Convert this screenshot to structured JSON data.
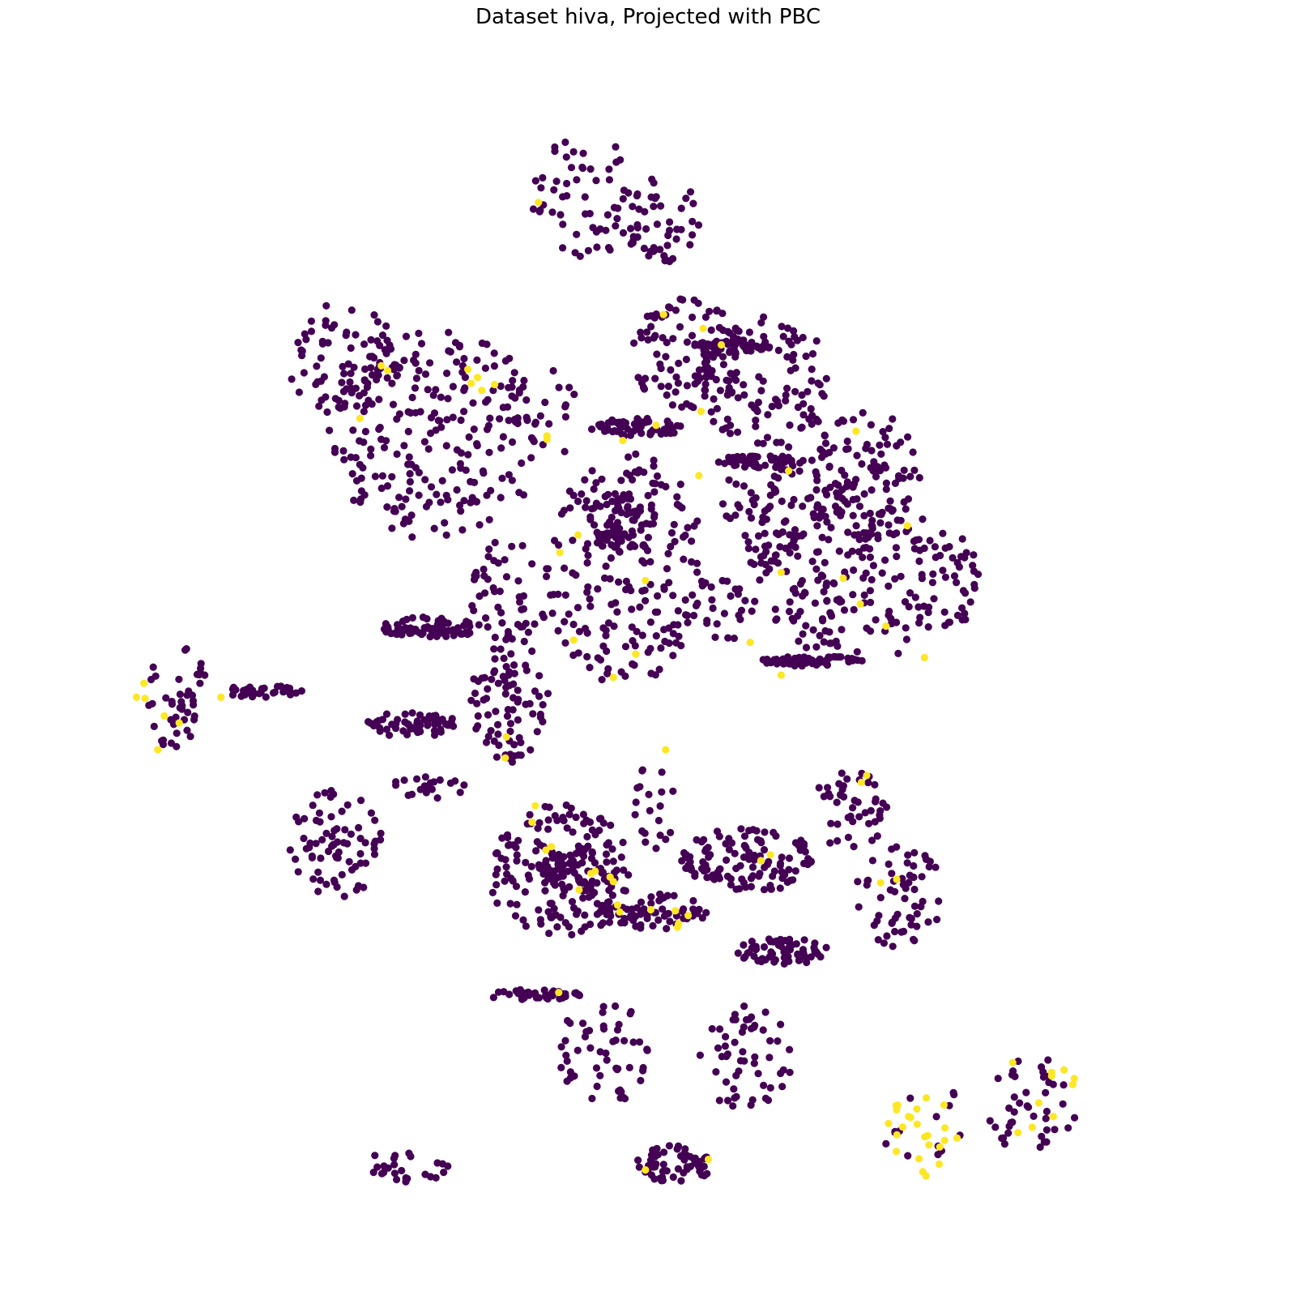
{
  "chart_data": {
    "type": "scatter",
    "title": "Dataset hiva, Projected with PBC",
    "xlabel": "",
    "ylabel": "",
    "axes_visible": false,
    "grid": false,
    "legend": "none",
    "xlim": [
      0,
      100
    ],
    "ylim": [
      0,
      100
    ],
    "point_radius": 4.6,
    "colors": {
      "class_0": "#440154",
      "class_1": "#fde725"
    },
    "clusters": [
      {
        "id": "top-a",
        "class": 0,
        "cx": 48.5,
        "cy": 89.5,
        "rx": 4.8,
        "ry": 5.6,
        "n": 50,
        "seed": 1
      },
      {
        "id": "top-b",
        "class": 0,
        "cx": 55.3,
        "cy": 87.4,
        "rx": 4.2,
        "ry": 3.9,
        "n": 55,
        "seed": 2
      },
      {
        "id": "ul-a",
        "class": 0,
        "cx": 26.2,
        "cy": 75.5,
        "rx": 5.5,
        "ry": 4.8,
        "n": 70,
        "seed": 3
      },
      {
        "id": "ul-b",
        "class": 0,
        "cx": 34.7,
        "cy": 69.0,
        "rx": 10.2,
        "ry": 9.0,
        "n": 240,
        "seed": 4
      },
      {
        "id": "ul-c",
        "class": 0,
        "cx": 46.5,
        "cy": 71.5,
        "rx": 1.6,
        "ry": 4.0,
        "n": 10,
        "seed": 5
      },
      {
        "id": "center-top",
        "class": 0,
        "cx": 58.3,
        "cy": 76.0,
        "rx": 5.5,
        "ry": 4.8,
        "n": 95,
        "seed": 6
      },
      {
        "id": "band-1",
        "class": 0,
        "cx": 53.5,
        "cy": 69.6,
        "rx": 4.4,
        "ry": 0.8,
        "n": 60,
        "seed": 7
      },
      {
        "id": "ur-top",
        "class": 0,
        "cx": 65.5,
        "cy": 73.5,
        "rx": 6.4,
        "ry": 5.6,
        "n": 110,
        "seed": 8
      },
      {
        "id": "band-2",
        "class": 0,
        "cx": 62.5,
        "cy": 76.6,
        "rx": 3.8,
        "ry": 0.55,
        "n": 45,
        "seed": 9
      },
      {
        "id": "band-3",
        "class": 0,
        "cx": 65.2,
        "cy": 66.7,
        "rx": 4.1,
        "ry": 0.55,
        "n": 55,
        "seed": 10
      },
      {
        "id": "ur-b",
        "class": 0,
        "cx": 67.3,
        "cy": 63.0,
        "rx": 6.0,
        "ry": 5.0,
        "n": 90,
        "seed": 11
      },
      {
        "id": "ur-c",
        "class": 0,
        "cx": 75.0,
        "cy": 65.5,
        "rx": 5.2,
        "ry": 5.5,
        "n": 95,
        "seed": 12
      },
      {
        "id": "right-mid",
        "class": 0,
        "cx": 74.7,
        "cy": 56.5,
        "rx": 11.2,
        "ry": 6.6,
        "n": 210,
        "seed": 13
      },
      {
        "id": "right-mid-2",
        "class": 0,
        "cx": 61.5,
        "cy": 54.3,
        "rx": 3.6,
        "ry": 2.9,
        "n": 28,
        "seed": 14
      },
      {
        "id": "band-4",
        "class": 0,
        "cx": 69.8,
        "cy": 49.6,
        "rx": 4.8,
        "ry": 0.45,
        "n": 65,
        "seed": 15
      },
      {
        "id": "center",
        "class": 0,
        "cx": 52.5,
        "cy": 57.5,
        "rx": 7.6,
        "ry": 10.0,
        "n": 190,
        "seed": 16
      },
      {
        "id": "center-dense",
        "class": 0,
        "cx": 52.2,
        "cy": 61.5,
        "rx": 3.4,
        "ry": 2.6,
        "n": 70,
        "seed": 17
      },
      {
        "id": "mid-left",
        "class": 0,
        "cx": 41.6,
        "cy": 55.7,
        "rx": 4.2,
        "ry": 4.3,
        "n": 48,
        "seed": 18
      },
      {
        "id": "band-5",
        "class": 0,
        "cx": 34.2,
        "cy": 52.5,
        "rx": 4.7,
        "ry": 0.9,
        "n": 70,
        "seed": 19
      },
      {
        "id": "mid-left-2",
        "class": 0,
        "cx": 41.6,
        "cy": 46.5,
        "rx": 3.6,
        "ry": 5.6,
        "n": 85,
        "seed": 20
      },
      {
        "id": "band-6",
        "class": 0,
        "cx": 32.5,
        "cy": 44.2,
        "rx": 4.4,
        "ry": 1.1,
        "n": 55,
        "seed": 21
      },
      {
        "id": "far-left",
        "class": 0,
        "cx": 10.5,
        "cy": 46.3,
        "rx": 3.1,
        "ry": 4.6,
        "n": 45,
        "seed": 22
      },
      {
        "id": "band-7",
        "class": 0,
        "cx": 18.3,
        "cy": 47.0,
        "rx": 4.2,
        "ry": 0.5,
        "n": 35,
        "seed": 23
      },
      {
        "id": "band-8",
        "class": 0,
        "cx": 34.3,
        "cy": 38.8,
        "rx": 4.0,
        "ry": 1.0,
        "n": 20,
        "seed": 24
      },
      {
        "id": "left-low",
        "class": 0,
        "cx": 25.3,
        "cy": 34.0,
        "rx": 4.4,
        "ry": 4.8,
        "n": 75,
        "seed": 25
      },
      {
        "id": "low-center",
        "class": 0,
        "cx": 46.3,
        "cy": 31.5,
        "rx": 6.6,
        "ry": 5.8,
        "n": 160,
        "seed": 26
      },
      {
        "id": "low-center-dense",
        "class": 0,
        "cx": 47.7,
        "cy": 31.8,
        "rx": 3.4,
        "ry": 2.0,
        "n": 65,
        "seed": 27
      },
      {
        "id": "band-9",
        "class": 0,
        "cx": 55.0,
        "cy": 28.1,
        "rx": 5.0,
        "ry": 1.6,
        "n": 65,
        "seed": 28
      },
      {
        "id": "low-center-2",
        "class": 0,
        "cx": 55.3,
        "cy": 37.0,
        "rx": 2.6,
        "ry": 3.8,
        "n": 20,
        "seed": 29
      },
      {
        "id": "low-right-band",
        "class": 0,
        "cx": 63.8,
        "cy": 32.5,
        "rx": 6.6,
        "ry": 2.8,
        "n": 120,
        "seed": 30
      },
      {
        "id": "low-right-b",
        "class": 0,
        "cx": 73.3,
        "cy": 36.8,
        "rx": 3.6,
        "ry": 3.5,
        "n": 45,
        "seed": 31
      },
      {
        "id": "low-right-c",
        "class": 0,
        "cx": 78.0,
        "cy": 29.5,
        "rx": 4.2,
        "ry": 4.4,
        "n": 60,
        "seed": 32
      },
      {
        "id": "band-10",
        "class": 0,
        "cx": 67.2,
        "cy": 24.7,
        "rx": 4.4,
        "ry": 1.2,
        "n": 65,
        "seed": 33
      },
      {
        "id": "band-11",
        "class": 0,
        "cx": 43.5,
        "cy": 21.0,
        "rx": 4.9,
        "ry": 0.45,
        "n": 45,
        "seed": 34
      },
      {
        "id": "bottom-a",
        "class": 0,
        "cx": 50.2,
        "cy": 16.0,
        "rx": 4.6,
        "ry": 4.5,
        "n": 55,
        "seed": 35
      },
      {
        "id": "bottom-b",
        "class": 0,
        "cx": 63.7,
        "cy": 15.7,
        "rx": 4.3,
        "ry": 4.6,
        "n": 55,
        "seed": 36
      },
      {
        "id": "bottom-left",
        "class": 0,
        "cx": 31.5,
        "cy": 6.2,
        "rx": 4.4,
        "ry": 1.3,
        "n": 25,
        "seed": 37
      },
      {
        "id": "bottom-mid",
        "class": 0,
        "cx": 57.1,
        "cy": 6.5,
        "rx": 3.6,
        "ry": 1.6,
        "n": 55,
        "seed": 38
      },
      {
        "id": "bottom-right",
        "class": 0,
        "cx": 90.5,
        "cy": 11.5,
        "rx": 4.3,
        "ry": 4.3,
        "n": 42,
        "seed": 39
      },
      {
        "id": "bottom-right-2",
        "class": 0,
        "cx": 80.4,
        "cy": 9.5,
        "rx": 4.1,
        "ry": 4.3,
        "n": 14,
        "seed": 40
      },
      {
        "id": "yellow-bottom-right",
        "class": 1,
        "cx": 80.5,
        "cy": 9.5,
        "rx": 3.8,
        "ry": 4.2,
        "n": 24,
        "seed": 41
      },
      {
        "id": "yellow-bottom-right-2",
        "class": 1,
        "cx": 91.0,
        "cy": 12.5,
        "rx": 3.8,
        "ry": 3.8,
        "n": 10,
        "seed": 42
      }
    ],
    "minority_points": [
      [
        44.3,
        88.9
      ],
      [
        56.0,
        79.3
      ],
      [
        59.7,
        78.1
      ],
      [
        61.4,
        76.7
      ],
      [
        30.2,
        74.5
      ],
      [
        29.6,
        74.9
      ],
      [
        37.7,
        74.6
      ],
      [
        38.0,
        73.4
      ],
      [
        39.0,
        72.8
      ],
      [
        40.2,
        73.3
      ],
      [
        38.6,
        73.9
      ],
      [
        27.6,
        70.4
      ],
      [
        45.1,
        68.9
      ],
      [
        45.1,
        68.6
      ],
      [
        52.2,
        68.5
      ],
      [
        55.3,
        69.8
      ],
      [
        59.3,
        65.5
      ],
      [
        59.5,
        71.0
      ],
      [
        67.7,
        65.9
      ],
      [
        74.0,
        69.3
      ],
      [
        78.8,
        61.2
      ],
      [
        48.0,
        60.4
      ],
      [
        46.3,
        58.9
      ],
      [
        54.3,
        56.5
      ],
      [
        67.0,
        57.2
      ],
      [
        72.8,
        56.7
      ],
      [
        74.4,
        54.5
      ],
      [
        76.8,
        52.6
      ],
      [
        64.1,
        51.2
      ],
      [
        47.6,
        51.4
      ],
      [
        53.4,
        50.2
      ],
      [
        67.0,
        48.4
      ],
      [
        80.4,
        49.9
      ],
      [
        51.3,
        48.2
      ],
      [
        7.4,
        47.7
      ],
      [
        6.7,
        46.5
      ],
      [
        7.5,
        46.4
      ],
      [
        14.6,
        46.5
      ],
      [
        9.3,
        44.9
      ],
      [
        10.7,
        44.3
      ],
      [
        8.7,
        42.0
      ],
      [
        41.3,
        43.1
      ],
      [
        41.2,
        41.3
      ],
      [
        56.2,
        42.0
      ],
      [
        74.5,
        39.2
      ],
      [
        75.0,
        39.8
      ],
      [
        44.0,
        37.2
      ],
      [
        43.7,
        35.8
      ],
      [
        45.0,
        33.4
      ],
      [
        45.5,
        33.7
      ],
      [
        49.2,
        31.4
      ],
      [
        49.6,
        31.6
      ],
      [
        51.0,
        31.1
      ],
      [
        51.3,
        30.7
      ],
      [
        48.1,
        30.0
      ],
      [
        51.9,
        28.1
      ],
      [
        54.8,
        28.3
      ],
      [
        57.3,
        26.8
      ],
      [
        51.7,
        28.7
      ],
      [
        57.1,
        28.2
      ],
      [
        58.3,
        27.8
      ],
      [
        57.4,
        27.1
      ],
      [
        65.1,
        32.5
      ],
      [
        66.0,
        33.0
      ],
      [
        77.8,
        30.9
      ],
      [
        76.3,
        30.6
      ],
      [
        46.2,
        21.2
      ],
      [
        60.2,
        6.9
      ],
      [
        54.3,
        6.0
      ]
    ]
  }
}
